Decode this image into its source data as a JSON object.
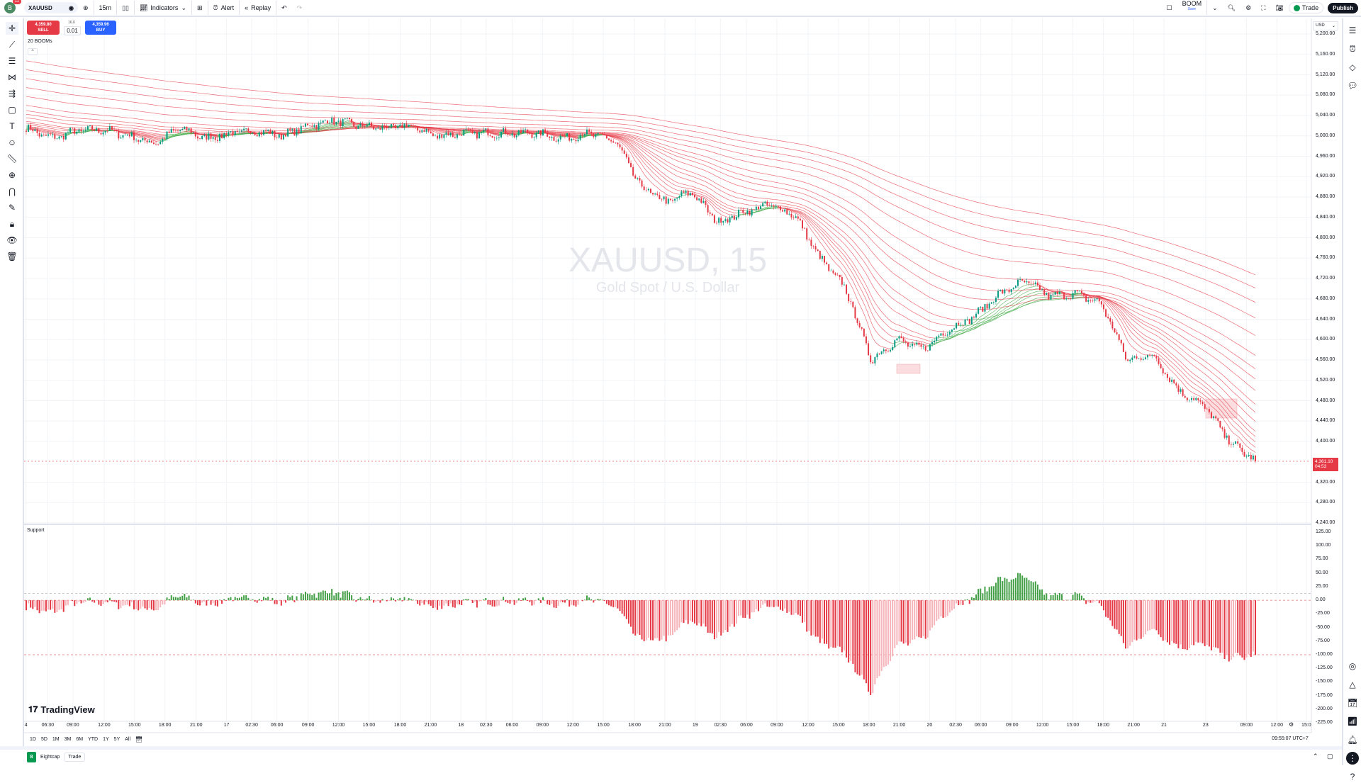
{
  "toolbar": {
    "avatar_letter": "B",
    "notifications": "11",
    "symbol": "XAUUSD",
    "interval": "15m",
    "indicators": "Indicators",
    "alert": "Alert",
    "replay": "Replay",
    "layout_name": "BOOM",
    "layout_status": "Save",
    "trade": "Trade",
    "publish": "Publish"
  },
  "trade_panel": {
    "sell_price": "4,359.80",
    "sell": "SELL",
    "spread": "16.0",
    "quantity": "0.01",
    "buy_price": "4,359.96",
    "buy": "BUY"
  },
  "indicator_label": "20 BOOMs",
  "watermark": {
    "title": "XAUUSD, 15",
    "subtitle": "Gold Spot / U.S. Dollar"
  },
  "price_axis": {
    "currency": "USD",
    "ticks": [
      "5,200.00",
      "5,160.00",
      "5,120.00",
      "5,080.00",
      "5,040.00",
      "5,000.00",
      "4,960.00",
      "4,920.00",
      "4,880.00",
      "4,840.00",
      "4,800.00",
      "4,760.00",
      "4,720.00",
      "4,680.00",
      "4,640.00",
      "4,600.00",
      "4,560.00",
      "4,520.00",
      "4,480.00",
      "4,440.00",
      "4,400.00",
      "4,320.00",
      "4,280.00",
      "4,240.00"
    ],
    "last_price": "4,361.10",
    "countdown": "04:53"
  },
  "oscillator": {
    "title": "Support",
    "ticks": [
      "125.00",
      "100.00",
      "75.00",
      "50.00",
      "25.00",
      "0.00",
      "-25.00",
      "-50.00",
      "-75.00",
      "-100.00",
      "-125.00",
      "-150.00",
      "-175.00",
      "-200.00",
      "-225.00"
    ]
  },
  "time_axis": {
    "labels": [
      "4",
      "06:30",
      "09:00",
      "12:00",
      "15:00",
      "18:00",
      "21:00",
      "17",
      "02:30",
      "06:00",
      "09:00",
      "12:00",
      "15:00",
      "18:00",
      "21:00",
      "18",
      "02:30",
      "06:00",
      "09:00",
      "12:00",
      "15:00",
      "18:00",
      "21:00",
      "19",
      "02:30",
      "06:00",
      "09:00",
      "12:00",
      "15:00",
      "18:00",
      "21:00",
      "20",
      "02:30",
      "06:00",
      "09:00",
      "12:00",
      "15:00",
      "18:00",
      "21:00",
      "21",
      "23",
      "09:00",
      "12:00",
      "15:0"
    ]
  },
  "range_buttons": [
    "1D",
    "5D",
    "1M",
    "3M",
    "6M",
    "YTD",
    "1Y",
    "5Y",
    "All"
  ],
  "clock": "09:55:07 UTC+7",
  "brand": "TradingView",
  "bottom_panel": {
    "broker": "Eightcap",
    "trade": "Trade"
  },
  "colors": {
    "up": "#089981",
    "down": "#e53945",
    "buy": "#2962ff",
    "ma": "#e53945",
    "ma_up": "#4caf50",
    "hist_pos": "#43a047",
    "hist_neg": "#e53945",
    "hist_neg_light": "#f5b5bb"
  },
  "price_path": [
    5015,
    4995,
    5010,
    5012,
    5000,
    4985,
    5015,
    4995,
    5005,
    5010,
    5000,
    5020,
    5030,
    5020,
    5015,
    5020,
    5000,
    5005,
    5005,
    5005,
    5005,
    4995,
    5005,
    4990,
    4900,
    4870,
    4890,
    4830,
    4850,
    4865,
    4845,
    4760,
    4700,
    4560,
    4600,
    4580,
    4620,
    4645,
    4690,
    4715,
    4685,
    4690,
    4670,
    4560,
    4570,
    4500,
    4470,
    4400,
    4361.1
  ]
}
